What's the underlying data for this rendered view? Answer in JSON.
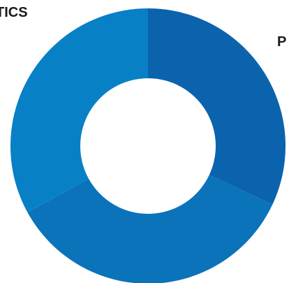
{
  "chart_data": {
    "type": "pie",
    "donut": true,
    "slices": [
      {
        "label": "P",
        "value": 32,
        "color": "#0B63AE"
      },
      {
        "label": "",
        "value": 35,
        "color": "#0A73BA"
      },
      {
        "label": "TICS",
        "value": 33,
        "color": "#0880C6"
      }
    ],
    "start_angle_deg": 0,
    "direction": "clockwise",
    "legend": "none",
    "grid": false
  }
}
